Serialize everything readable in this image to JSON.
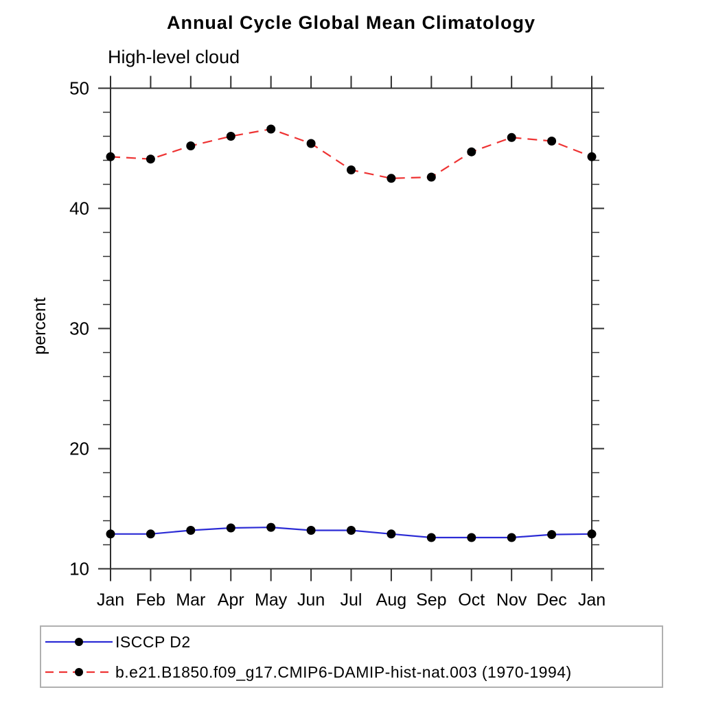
{
  "title": "Annual Cycle Global Mean Climatology",
  "subtitle": "High-level cloud",
  "legend": [
    {
      "label": "ISCCP D2",
      "color": "#2b2bd5",
      "style": "solid",
      "marker_color": "#000000"
    },
    {
      "label": "b.e21.B1850.f09_g17.CMIP6-DAMIP-hist-nat.003 (1970-1994)",
      "color": "#ee3333",
      "style": "dashed",
      "marker_color": "#000000"
    }
  ],
  "chart_data": {
    "type": "line",
    "title": "Annual Cycle Global Mean Climatology",
    "subtitle": "High-level cloud",
    "xlabel": "",
    "ylabel": "percent",
    "categories": [
      "Jan",
      "Feb",
      "Mar",
      "Apr",
      "May",
      "Jun",
      "Jul",
      "Aug",
      "Sep",
      "Oct",
      "Nov",
      "Dec",
      "Jan"
    ],
    "series": [
      {
        "name": "ISCCP D2",
        "color": "#2b2bd5",
        "line_style": "solid",
        "marker": "filled-circle",
        "marker_color": "#000000",
        "values": [
          12.9,
          12.9,
          13.2,
          13.4,
          13.45,
          13.2,
          13.2,
          12.9,
          12.6,
          12.6,
          12.6,
          12.85,
          12.9
        ]
      },
      {
        "name": "b.e21.B1850.f09_g17.CMIP6-DAMIP-hist-nat.003 (1970-1994)",
        "color": "#ee3333",
        "line_style": "dashed",
        "marker": "filled-circle",
        "marker_color": "#000000",
        "values": [
          44.3,
          44.1,
          45.2,
          46.0,
          46.6,
          45.4,
          43.2,
          42.5,
          42.6,
          44.7,
          45.9,
          45.6,
          44.3
        ]
      }
    ],
    "ylim": [
      10,
      50
    ],
    "yticks": [
      10,
      20,
      30,
      40,
      50
    ],
    "y_minor_step": 2,
    "grid": false,
    "legend_position": "bottom",
    "axis_color": "#2f2f2f"
  }
}
